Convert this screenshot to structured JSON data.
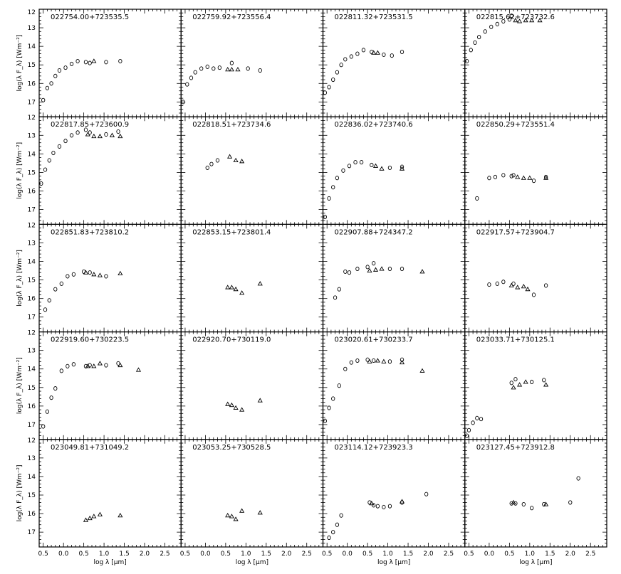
{
  "figure": {
    "ylabel": "log(λ F_λ) [Wm⁻²]",
    "xlabel": "log λ [μm]",
    "x_ticks": [
      "0.5",
      "0.0",
      "0.5",
      "1.0",
      "1.5",
      "2.0",
      "2.5"
    ],
    "y_ticks": [
      "12",
      "13",
      "14",
      "15",
      "16",
      "17"
    ]
  },
  "chart_data": [
    {
      "type": "scatter",
      "title": "022754.00+723535.5",
      "xlim": [
        -0.6,
        2.9
      ],
      "ylim": [
        17.8,
        12
      ],
      "series": [
        {
          "marker": "circle",
          "x": [
            -0.5,
            -0.4,
            -0.3,
            -0.2,
            -0.1,
            0.05,
            0.2,
            0.35,
            0.55,
            0.65,
            1.05,
            1.4
          ],
          "y": [
            16.9,
            16.25,
            16.0,
            15.6,
            15.3,
            15.15,
            14.95,
            14.8,
            14.85,
            14.9,
            14.85,
            14.8
          ]
        },
        {
          "marker": "triangle",
          "x": [
            0.75
          ],
          "y": [
            14.8
          ]
        }
      ]
    },
    {
      "type": "scatter",
      "title": "022759.92+723556.4",
      "xlim": [
        -0.6,
        2.9
      ],
      "ylim": [
        17.8,
        12
      ],
      "series": [
        {
          "marker": "circle",
          "x": [
            -0.55,
            -0.45,
            -0.35,
            -0.25,
            -0.1,
            0.05,
            0.2,
            0.35,
            0.65,
            1.05,
            1.35
          ],
          "y": [
            17.0,
            16.05,
            15.7,
            15.4,
            15.2,
            15.1,
            15.2,
            15.15,
            14.9,
            15.2,
            15.3
          ]
        },
        {
          "marker": "triangle",
          "x": [
            0.55,
            0.65,
            0.8
          ],
          "y": [
            15.25,
            15.25,
            15.25
          ]
        }
      ]
    },
    {
      "type": "scatter",
      "title": "022811.32+723531.5",
      "xlim": [
        -0.6,
        2.9
      ],
      "ylim": [
        17.8,
        12
      ],
      "series": [
        {
          "marker": "circle",
          "x": [
            -0.55,
            -0.45,
            -0.35,
            -0.25,
            -0.15,
            -0.05,
            0.1,
            0.25,
            0.4,
            0.6,
            0.9,
            1.1,
            1.35
          ],
          "y": [
            16.5,
            16.2,
            15.8,
            15.4,
            15.0,
            14.7,
            14.55,
            14.4,
            14.2,
            14.3,
            14.45,
            14.5,
            14.3
          ]
        },
        {
          "marker": "triangle",
          "x": [
            0.65,
            0.75
          ],
          "y": [
            14.35,
            14.35
          ]
        }
      ]
    },
    {
      "type": "scatter",
      "title": "022815.62+723732.6",
      "xlim": [
        -0.6,
        2.9
      ],
      "ylim": [
        17.8,
        12
      ],
      "series": [
        {
          "marker": "circle",
          "x": [
            -0.55,
            -0.45,
            -0.35,
            -0.25,
            -0.1,
            0.05,
            0.2,
            0.35,
            0.5,
            0.55
          ],
          "y": [
            14.8,
            14.2,
            13.8,
            13.5,
            13.2,
            12.95,
            12.8,
            12.65,
            12.55,
            12.35
          ]
        },
        {
          "marker": "triangle",
          "x": [
            0.65,
            0.75,
            0.9,
            1.05,
            1.25
          ],
          "y": [
            12.6,
            12.65,
            12.6,
            12.6,
            12.6
          ]
        }
      ]
    },
    {
      "type": "scatter",
      "title": "022817.85+723600.9",
      "xlim": [
        -0.6,
        2.9
      ],
      "ylim": [
        17.8,
        12
      ],
      "series": [
        {
          "marker": "circle",
          "x": [
            -0.55,
            -0.45,
            -0.35,
            -0.25,
            -0.1,
            0.05,
            0.2,
            0.35,
            0.55,
            0.65,
            1.05,
            1.35
          ],
          "y": [
            15.6,
            14.85,
            14.35,
            13.95,
            13.6,
            13.3,
            13.0,
            12.85,
            12.7,
            12.85,
            12.95,
            12.8
          ]
        },
        {
          "marker": "triangle",
          "x": [
            0.6,
            0.75,
            0.9,
            1.2,
            1.4
          ],
          "y": [
            12.95,
            13.05,
            13.05,
            13.0,
            13.05
          ]
        }
      ]
    },
    {
      "type": "scatter",
      "title": "022818.51+723734.6",
      "xlim": [
        -0.6,
        2.9
      ],
      "ylim": [
        17.8,
        12
      ],
      "series": [
        {
          "marker": "circle",
          "x": [
            0.05,
            0.15,
            0.3
          ],
          "y": [
            14.75,
            14.55,
            14.35
          ]
        },
        {
          "marker": "triangle",
          "x": [
            0.6,
            0.75,
            0.9
          ],
          "y": [
            14.15,
            14.35,
            14.4
          ]
        }
      ]
    },
    {
      "type": "scatter",
      "title": "022836.02+723740.6",
      "xlim": [
        -0.6,
        2.9
      ],
      "ylim": [
        17.8,
        12
      ],
      "series": [
        {
          "marker": "circle",
          "x": [
            -0.55,
            -0.45,
            -0.35,
            -0.25,
            -0.1,
            0.05,
            0.2,
            0.35,
            0.6,
            1.05,
            1.35
          ],
          "y": [
            17.4,
            16.4,
            15.8,
            15.3,
            14.9,
            14.65,
            14.45,
            14.45,
            14.6,
            14.75,
            14.7
          ]
        },
        {
          "marker": "triangle",
          "x": [
            0.7,
            0.85,
            1.35
          ],
          "y": [
            14.65,
            14.8,
            14.8
          ]
        }
      ]
    },
    {
      "type": "scatter",
      "title": "022850.29+723551.4",
      "xlim": [
        -0.6,
        2.9
      ],
      "ylim": [
        17.8,
        12
      ],
      "series": [
        {
          "marker": "circle",
          "x": [
            -0.3,
            0.0,
            0.15,
            0.35,
            0.55,
            0.6,
            1.1,
            1.4
          ],
          "y": [
            16.4,
            15.3,
            15.25,
            15.15,
            15.2,
            15.15,
            15.45,
            15.25
          ]
        },
        {
          "marker": "triangle",
          "x": [
            0.7,
            0.85,
            1.0,
            1.4
          ],
          "y": [
            15.25,
            15.3,
            15.3,
            15.3
          ]
        }
      ]
    },
    {
      "type": "scatter",
      "title": "022851.83+723810.2",
      "xlim": [
        -0.6,
        2.9
      ],
      "ylim": [
        17.8,
        12
      ],
      "series": [
        {
          "marker": "circle",
          "x": [
            -0.45,
            -0.35,
            -0.2,
            -0.05,
            0.1,
            0.25,
            0.5,
            0.65,
            1.05
          ],
          "y": [
            16.6,
            16.1,
            15.5,
            15.2,
            14.8,
            14.7,
            14.55,
            14.6,
            14.8
          ]
        },
        {
          "marker": "triangle",
          "x": [
            0.55,
            0.75,
            0.9,
            1.4
          ],
          "y": [
            14.6,
            14.7,
            14.75,
            14.65
          ]
        }
      ]
    },
    {
      "type": "scatter",
      "title": "022853.15+723801.4",
      "xlim": [
        -0.6,
        2.9
      ],
      "ylim": [
        17.8,
        12
      ],
      "series": [
        {
          "marker": "triangle",
          "x": [
            0.55,
            0.65,
            0.75,
            0.9,
            1.35
          ],
          "y": [
            15.4,
            15.4,
            15.5,
            15.7,
            15.2
          ]
        }
      ]
    },
    {
      "type": "scatter",
      "title": "022907.88+724347.2",
      "xlim": [
        -0.6,
        2.9
      ],
      "ylim": [
        17.8,
        12
      ],
      "series": [
        {
          "marker": "circle",
          "x": [
            -0.3,
            -0.2,
            -0.05,
            0.05,
            0.25,
            0.5,
            0.65,
            1.05,
            1.35
          ],
          "y": [
            15.95,
            15.5,
            14.55,
            14.6,
            14.4,
            14.3,
            14.1,
            14.4,
            14.4
          ]
        },
        {
          "marker": "triangle",
          "x": [
            0.55,
            0.7,
            0.85,
            1.85
          ],
          "y": [
            14.5,
            14.45,
            14.4,
            14.55
          ]
        }
      ]
    },
    {
      "type": "scatter",
      "title": "022917.57+723904.7",
      "xlim": [
        -0.6,
        2.9
      ],
      "ylim": [
        17.8,
        12
      ],
      "series": [
        {
          "marker": "circle",
          "x": [
            0.0,
            0.2,
            0.35,
            0.6,
            1.1,
            1.4
          ],
          "y": [
            15.25,
            15.2,
            15.1,
            15.2,
            15.8,
            15.3
          ]
        },
        {
          "marker": "triangle",
          "x": [
            0.55,
            0.7,
            0.85,
            0.95
          ],
          "y": [
            15.3,
            15.4,
            15.35,
            15.5
          ]
        }
      ]
    },
    {
      "type": "scatter",
      "title": "022919.60+730223.5",
      "xlim": [
        -0.6,
        2.9
      ],
      "ylim": [
        17.8,
        12
      ],
      "series": [
        {
          "marker": "circle",
          "x": [
            -0.5,
            -0.4,
            -0.3,
            -0.2,
            -0.05,
            0.1,
            0.25,
            0.55,
            0.65,
            1.05,
            1.35
          ],
          "y": [
            17.1,
            16.3,
            15.55,
            15.05,
            14.1,
            13.85,
            13.75,
            13.85,
            13.8,
            13.8,
            13.7
          ]
        },
        {
          "marker": "triangle",
          "x": [
            0.6,
            0.75,
            0.9,
            1.4,
            1.85
          ],
          "y": [
            13.85,
            13.85,
            13.7,
            13.8,
            14.05
          ]
        }
      ]
    },
    {
      "type": "scatter",
      "title": "022920.70+730119.0",
      "xlim": [
        -0.6,
        2.9
      ],
      "ylim": [
        17.8,
        12
      ],
      "series": [
        {
          "marker": "triangle",
          "x": [
            0.55,
            0.65,
            0.75,
            0.9,
            1.35
          ],
          "y": [
            15.9,
            15.95,
            16.1,
            16.2,
            15.7
          ]
        }
      ]
    },
    {
      "type": "scatter",
      "title": "023020.61+730233.7",
      "xlim": [
        -0.6,
        2.9
      ],
      "ylim": [
        17.8,
        12
      ],
      "series": [
        {
          "marker": "circle",
          "x": [
            -0.55,
            -0.45,
            -0.35,
            -0.2,
            -0.05,
            0.1,
            0.25,
            0.5,
            0.65,
            1.05,
            1.35
          ],
          "y": [
            16.8,
            16.1,
            15.6,
            14.9,
            14.0,
            13.65,
            13.55,
            13.5,
            13.55,
            13.6,
            13.5
          ]
        },
        {
          "marker": "triangle",
          "x": [
            0.55,
            0.75,
            0.9,
            1.35,
            1.85
          ],
          "y": [
            13.6,
            13.55,
            13.6,
            13.65,
            14.1
          ]
        }
      ]
    },
    {
      "type": "scatter",
      "title": "023033.71+730125.1",
      "xlim": [
        -0.6,
        2.9
      ],
      "ylim": [
        17.8,
        12
      ],
      "series": [
        {
          "marker": "circle",
          "x": [
            -0.55,
            -0.5,
            -0.4,
            -0.3,
            -0.2,
            0.55,
            0.65,
            1.05,
            1.35
          ],
          "y": [
            17.6,
            17.3,
            16.9,
            16.65,
            16.7,
            14.75,
            14.55,
            14.7,
            14.6
          ]
        },
        {
          "marker": "triangle",
          "x": [
            0.6,
            0.75,
            0.9,
            1.4
          ],
          "y": [
            15.0,
            14.85,
            14.7,
            14.85
          ]
        }
      ]
    },
    {
      "type": "scatter",
      "title": "023049.81+731049.2",
      "xlim": [
        -0.6,
        2.9
      ],
      "ylim": [
        17.8,
        12
      ],
      "series": [
        {
          "marker": "triangle",
          "x": [
            0.55,
            0.65,
            0.75,
            0.9,
            1.4
          ],
          "y": [
            16.35,
            16.25,
            16.15,
            16.05,
            16.1
          ]
        }
      ]
    },
    {
      "type": "scatter",
      "title": "023053.25+730528.5",
      "xlim": [
        -0.6,
        2.9
      ],
      "ylim": [
        17.8,
        12
      ],
      "series": [
        {
          "marker": "triangle",
          "x": [
            0.55,
            0.65,
            0.75,
            0.9,
            1.35
          ],
          "y": [
            16.1,
            16.15,
            16.3,
            15.85,
            15.95
          ]
        }
      ]
    },
    {
      "type": "scatter",
      "title": "023114.12+723923.3",
      "xlim": [
        -0.6,
        2.9
      ],
      "ylim": [
        17.8,
        12
      ],
      "series": [
        {
          "marker": "circle",
          "x": [
            -0.45,
            -0.35,
            -0.25,
            -0.15,
            0.55,
            0.65,
            0.75,
            0.9,
            1.05,
            1.35,
            1.95
          ],
          "y": [
            17.3,
            17.0,
            16.6,
            16.1,
            15.4,
            15.55,
            15.6,
            15.65,
            15.6,
            15.4,
            14.95
          ]
        },
        {
          "marker": "triangle",
          "x": [
            0.6,
            1.35
          ],
          "y": [
            15.45,
            15.35
          ]
        }
      ]
    },
    {
      "type": "scatter",
      "title": "023127.45+723912.8",
      "xlim": [
        -0.6,
        2.9
      ],
      "ylim": [
        17.8,
        12
      ],
      "series": [
        {
          "marker": "circle",
          "x": [
            0.55,
            0.65,
            0.85,
            1.05,
            1.35,
            2.0,
            2.2
          ],
          "y": [
            15.45,
            15.45,
            15.5,
            15.7,
            15.5,
            15.4,
            14.1
          ]
        },
        {
          "marker": "triangle",
          "x": [
            0.6,
            1.4
          ],
          "y": [
            15.4,
            15.5
          ]
        }
      ]
    }
  ]
}
